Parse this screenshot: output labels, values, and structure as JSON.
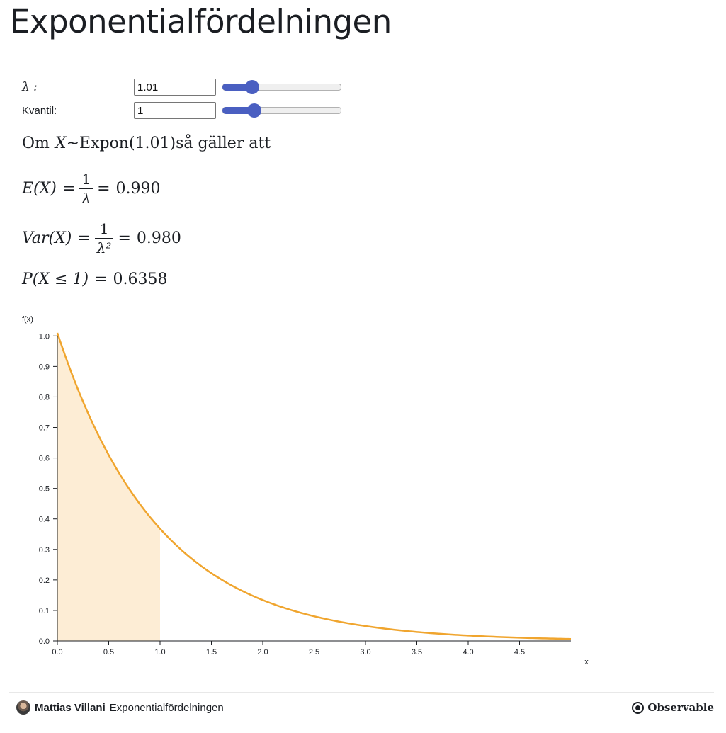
{
  "notebook": {
    "title": "Exponentialfördelningen"
  },
  "controls": {
    "lambda": {
      "label": "λ :",
      "value": "1.01",
      "min": 0.1,
      "max": 5,
      "current": 1.01
    },
    "quantile": {
      "label": "Kvantil:",
      "value": "1",
      "min": 0,
      "max": 5,
      "current": 1
    }
  },
  "summary": {
    "intro_prefix": "Om ",
    "variable": "X",
    "tilde": " ∼ ",
    "distribution": "Expon(1.01)",
    "intro_suffix": " så gäller att",
    "mean_lhs": "E(X)",
    "equals": "=",
    "one": "1",
    "lambda_symbol": "λ",
    "lambda_sq": "λ²",
    "mean_value": "0.990",
    "var_lhs": "Var(X)",
    "var_value": "0.980",
    "prob_lhs": "P(X ≤ 1)",
    "prob_value": "0.6358"
  },
  "chart_data": {
    "type": "area",
    "function": "f(x) = 1.01 · e^(−1.01·x)",
    "lambda": 1.01,
    "shade_upper": 1,
    "xlabel": "x",
    "ylabel": "f(x)",
    "xlim": [
      0,
      5
    ],
    "ylim": [
      0,
      1.01
    ],
    "x_ticks": [
      "0.0",
      "0.5",
      "1.0",
      "1.5",
      "2.0",
      "2.5",
      "3.0",
      "3.5",
      "4.0",
      "4.5"
    ],
    "y_ticks": [
      "0.0",
      "0.1",
      "0.2",
      "0.3",
      "0.4",
      "0.5",
      "0.6",
      "0.7",
      "0.8",
      "0.9",
      "1.0"
    ],
    "line_color": "#f0a52e",
    "fill_color": "#fdedd5",
    "grid": false
  },
  "footer": {
    "author": "Mattias Villani",
    "title": "Exponentialfördelningen",
    "brand": "Observable"
  }
}
